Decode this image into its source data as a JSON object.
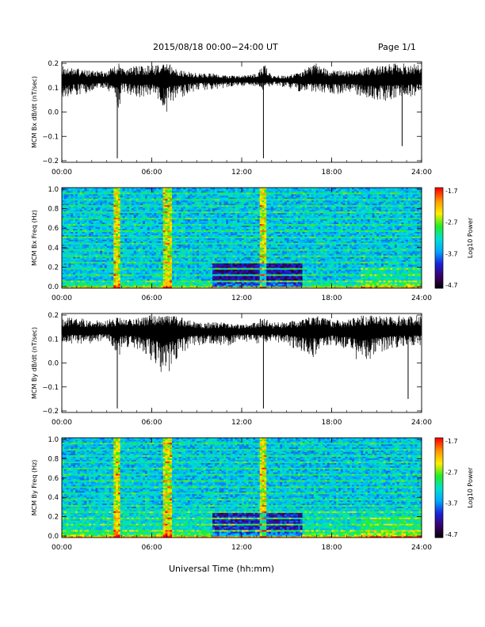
{
  "header": {
    "title": "2015/08/18  00:00−24:00 UT",
    "page": "Page 1/1"
  },
  "xlabel": "Universal Time (hh:mm)",
  "colors": {
    "trace": "#000000",
    "colormap": [
      "#000000",
      "#3a0066",
      "#1a22dd",
      "#00aaff",
      "#00e0d0",
      "#22ee22",
      "#ffee00",
      "#ff9900",
      "#ff0000"
    ]
  },
  "chart_data": [
    {
      "type": "line",
      "ylabel": "MCM Bx dB/dt (nT/sec)",
      "x_ticks": [
        "00:00",
        "06:00",
        "12:00",
        "18:00",
        "24:00"
      ],
      "xlim": [
        0,
        24
      ],
      "ylim": [
        -0.2,
        0.2
      ],
      "y_ticks": [
        "0.2",
        "0.1",
        "0.0",
        "−0.1",
        "−0.2"
      ],
      "baseline": 0.13,
      "series": [
        {
          "x": [
            0,
            1,
            2,
            3,
            3.8,
            4,
            5,
            6,
            6.5,
            7,
            7.2,
            8,
            9,
            10,
            11,
            12,
            13,
            13.5,
            14,
            15,
            16,
            17,
            18,
            19,
            20,
            21,
            22,
            23,
            24
          ],
          "upper": [
            0.19,
            0.18,
            0.17,
            0.17,
            0.2,
            0.18,
            0.19,
            0.19,
            0.2,
            0.2,
            0.2,
            0.17,
            0.16,
            0.16,
            0.15,
            0.15,
            0.16,
            0.2,
            0.15,
            0.15,
            0.17,
            0.2,
            0.17,
            0.17,
            0.18,
            0.19,
            0.2,
            0.2,
            0.2
          ],
          "lower": [
            0.06,
            0.07,
            0.08,
            0.1,
            0.0,
            0.09,
            0.05,
            0.07,
            0.03,
            0.0,
            0.04,
            0.06,
            0.09,
            0.09,
            0.1,
            0.1,
            0.1,
            0.09,
            0.11,
            0.1,
            0.08,
            0.08,
            0.07,
            0.08,
            0.06,
            0.04,
            0.05,
            0.06,
            0.07
          ]
        }
      ],
      "spikes": [
        {
          "x": 3.7,
          "y": -0.19
        },
        {
          "x": 13.45,
          "y": -0.19
        },
        {
          "x": 22.7,
          "y": -0.14
        }
      ]
    },
    {
      "type": "heatmap",
      "ylabel": "MCM Bx Freq (Hz)",
      "x_ticks": [
        "00:00",
        "06:00",
        "12:00",
        "18:00",
        "24:00"
      ],
      "xlim": [
        0,
        24
      ],
      "ylim": [
        0.0,
        1.0
      ],
      "y_ticks": [
        "1.0",
        "0.8",
        "0.6",
        "0.4",
        "0.2",
        "0.0"
      ],
      "colorbar": {
        "label": "Log10 Power",
        "ticks": [
          "-1.7",
          "-2.7",
          "-3.7",
          "-4.7"
        ],
        "range": [
          -4.7,
          -1.7
        ]
      },
      "bright_columns": [
        3.7,
        6.9,
        7.0,
        7.2,
        13.45
      ],
      "seed": 11
    },
    {
      "type": "line",
      "ylabel": "MCM By dB/dt (nT/sec)",
      "x_ticks": [
        "00:00",
        "06:00",
        "12:00",
        "18:00",
        "24:00"
      ],
      "xlim": [
        0,
        24
      ],
      "ylim": [
        -0.2,
        0.2
      ],
      "y_ticks": [
        "0.2",
        "0.1",
        "0.0",
        "−0.1",
        "−0.2"
      ],
      "baseline": 0.13,
      "series": [
        {
          "x": [
            0,
            1,
            2,
            3,
            3.8,
            4,
            5,
            6,
            6.5,
            7,
            7.2,
            8,
            9,
            10,
            11,
            12,
            13,
            13.5,
            14,
            15,
            16,
            17,
            18,
            19,
            20,
            21,
            22,
            23,
            24
          ],
          "upper": [
            0.19,
            0.19,
            0.18,
            0.18,
            0.2,
            0.19,
            0.19,
            0.2,
            0.2,
            0.2,
            0.2,
            0.19,
            0.17,
            0.17,
            0.17,
            0.16,
            0.17,
            0.2,
            0.17,
            0.17,
            0.19,
            0.2,
            0.18,
            0.18,
            0.2,
            0.2,
            0.2,
            0.2,
            0.2
          ],
          "lower": [
            0.08,
            0.08,
            0.08,
            0.1,
            0.02,
            0.07,
            0.06,
            0.01,
            -0.03,
            -0.06,
            -0.04,
            0.04,
            0.07,
            0.08,
            0.07,
            0.09,
            0.08,
            0.08,
            0.09,
            0.08,
            0.04,
            0.02,
            0.07,
            0.06,
            -0.02,
            0.04,
            0.06,
            0.07,
            0.07
          ]
        }
      ],
      "spikes": [
        {
          "x": 3.7,
          "y": -0.19
        },
        {
          "x": 13.45,
          "y": -0.19
        },
        {
          "x": 23.1,
          "y": -0.15
        }
      ]
    },
    {
      "type": "heatmap",
      "ylabel": "MCM By Freq (Hz)",
      "x_ticks": [
        "00:00",
        "06:00",
        "12:00",
        "18:00",
        "24:00"
      ],
      "xlim": [
        0,
        24
      ],
      "ylim": [
        0.0,
        1.0
      ],
      "y_ticks": [
        "1.0",
        "0.8",
        "0.6",
        "0.4",
        "0.2",
        "0.0"
      ],
      "colorbar": {
        "label": "Log10 Power",
        "ticks": [
          "-1.7",
          "-2.7",
          "-3.7",
          "-4.7"
        ],
        "range": [
          -4.7,
          -1.7
        ]
      },
      "bright_columns": [
        3.7,
        7.0,
        7.2,
        13.45
      ],
      "seed": 29
    }
  ]
}
